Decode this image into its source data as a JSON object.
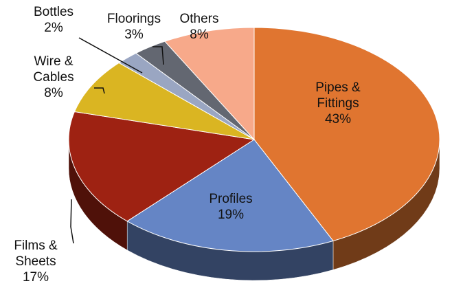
{
  "chart_data": {
    "type": "pie",
    "categories": [
      "Pipes & Fittings",
      "Profiles",
      "Films & Sheets",
      "Wire & Cables",
      "Bottles",
      "Floorings",
      "Others"
    ],
    "values": [
      43,
      19,
      17,
      8,
      2,
      3,
      8
    ],
    "value_labels": [
      "43%",
      "19%",
      "17%",
      "8%",
      "2%",
      "3%",
      "8%"
    ],
    "colors": [
      "#e07530",
      "#6585c5",
      "#9e2212",
      "#dab522",
      "#9aa6c2",
      "#636771",
      "#f7a98a"
    ]
  }
}
